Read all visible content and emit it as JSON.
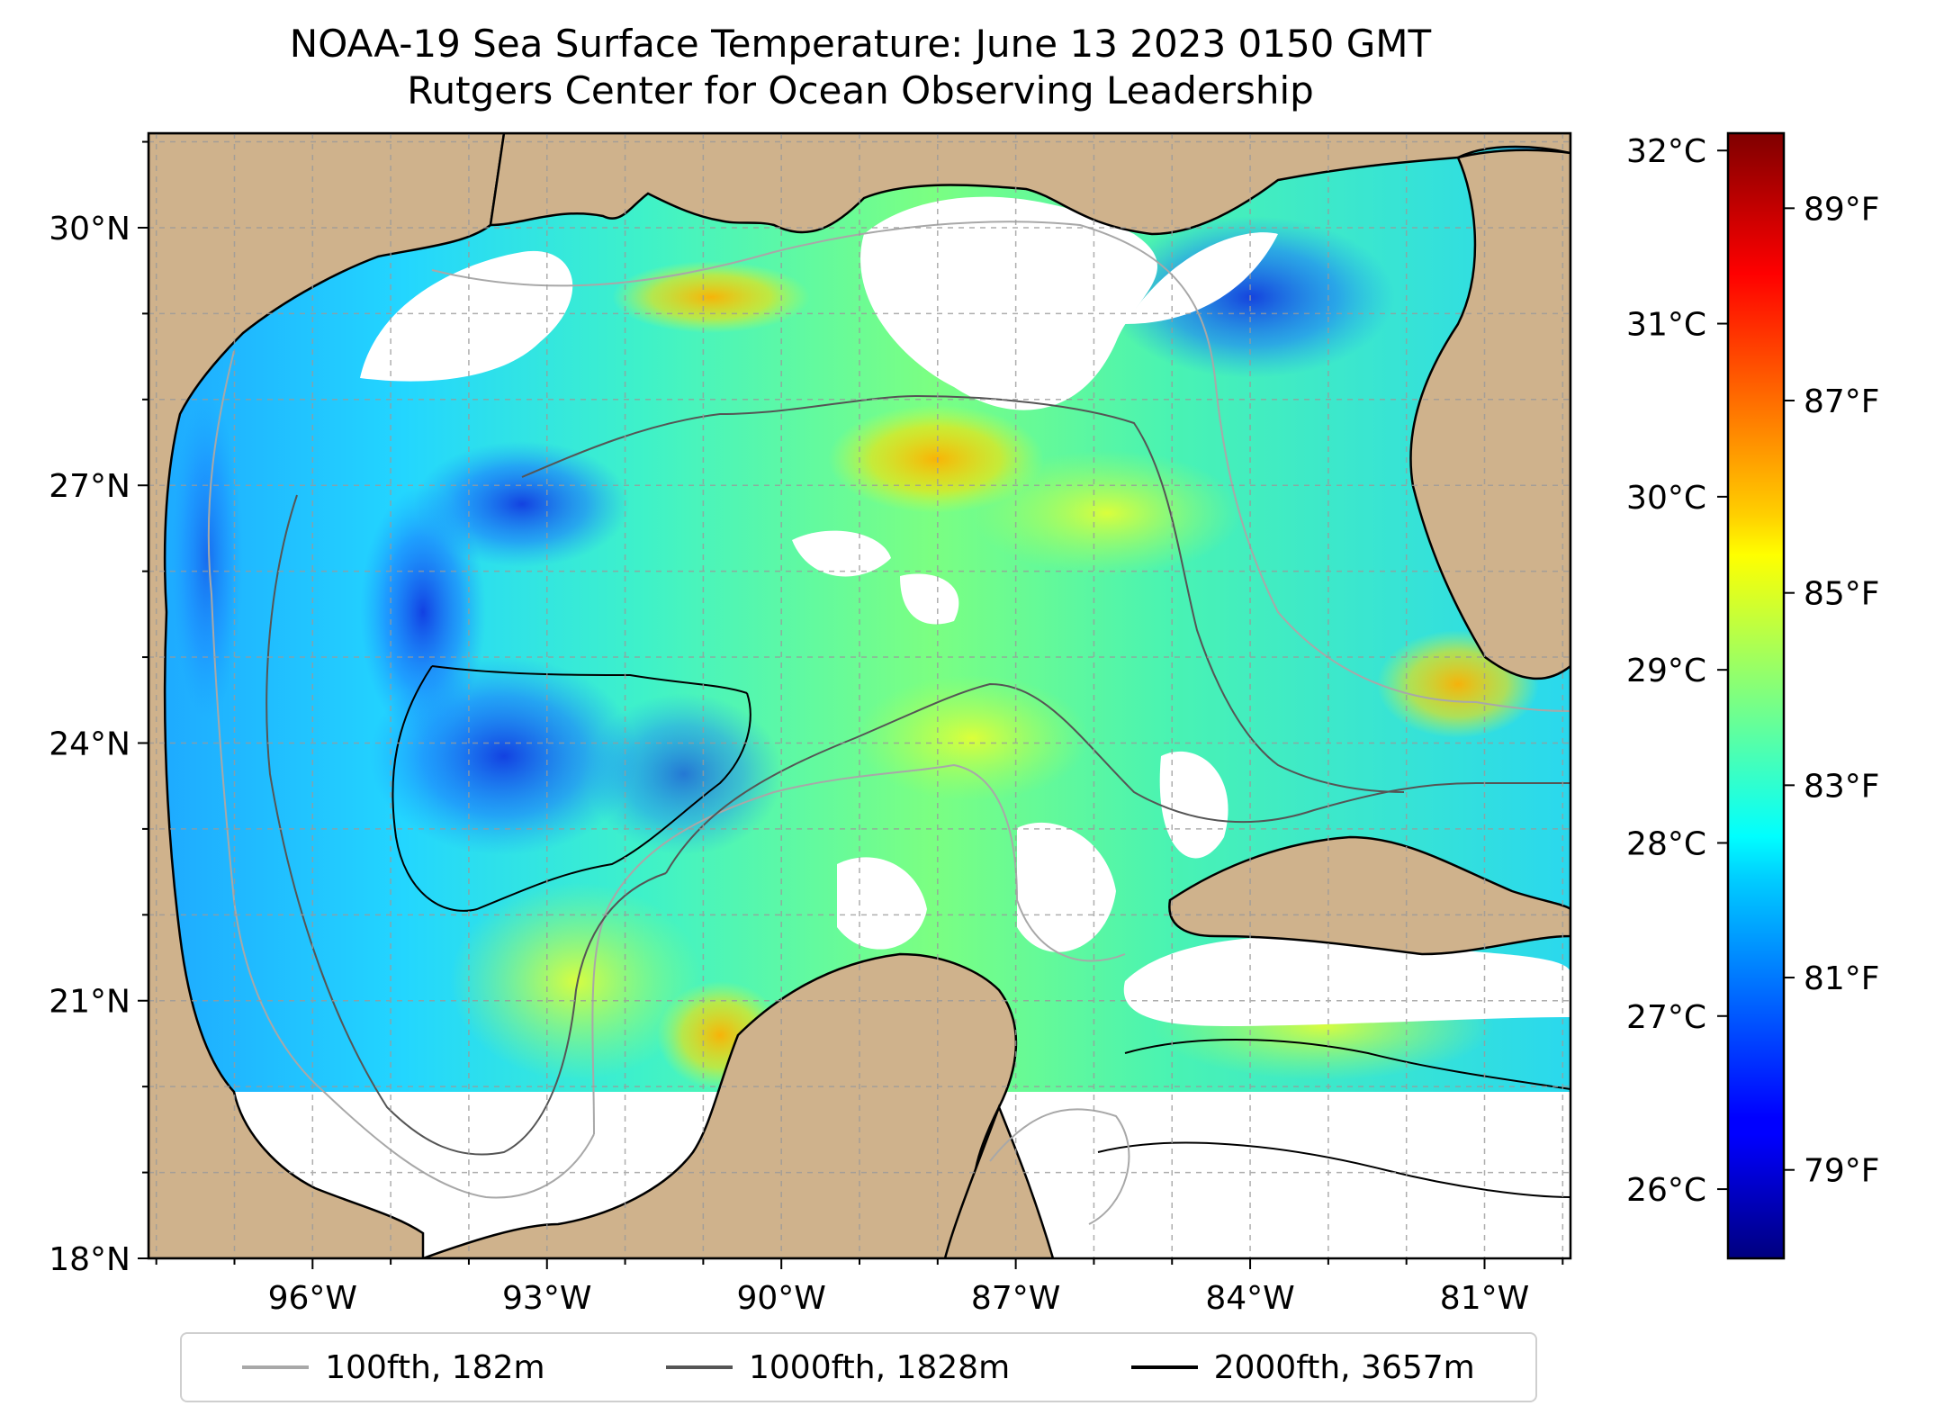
{
  "title": "NOAA-19 Sea Surface Temperature: June 13 2023 0150 GMT",
  "subtitle": "Rutgers Center for Ocean Observing Leadership",
  "map": {
    "lat_range": [
      18,
      31.1
    ],
    "lon_range": [
      -98.1,
      -79.9
    ],
    "lat_ticks": [
      {
        "value": 18,
        "label": "18°N"
      },
      {
        "value": 21,
        "label": "21°N"
      },
      {
        "value": 24,
        "label": "24°N"
      },
      {
        "value": 27,
        "label": "27°N"
      },
      {
        "value": 30,
        "label": "30°N"
      }
    ],
    "lon_ticks": [
      {
        "value": -96,
        "label": "96°W"
      },
      {
        "value": -93,
        "label": "93°W"
      },
      {
        "value": -90,
        "label": "90°W"
      },
      {
        "value": -87,
        "label": "87°W"
      },
      {
        "value": -84,
        "label": "84°W"
      },
      {
        "value": -81,
        "label": "81°W"
      }
    ],
    "grid": true,
    "land_color": "#cfb28c",
    "nodata_color": "#ffffff"
  },
  "colorbar": {
    "colormap": "jet",
    "celsius_range": [
      25.6,
      32.1
    ],
    "celsius_ticks": [
      {
        "value": 26,
        "label": "26°C"
      },
      {
        "value": 27,
        "label": "27°C"
      },
      {
        "value": 28,
        "label": "28°C"
      },
      {
        "value": 29,
        "label": "29°C"
      },
      {
        "value": 30,
        "label": "30°C"
      },
      {
        "value": 31,
        "label": "31°C"
      },
      {
        "value": 32,
        "label": "32°C"
      }
    ],
    "fahrenheit_ticks": [
      {
        "value": 79,
        "label": "79°F"
      },
      {
        "value": 81,
        "label": "81°F"
      },
      {
        "value": 83,
        "label": "83°F"
      },
      {
        "value": 85,
        "label": "85°F"
      },
      {
        "value": 87,
        "label": "87°F"
      },
      {
        "value": 89,
        "label": "89°F"
      }
    ]
  },
  "legend": [
    {
      "label": "100fth, 182m",
      "color": "#a8a8a8"
    },
    {
      "label": "1000fth, 1828m",
      "color": "#555555"
    },
    {
      "label": "2000fth, 3657m",
      "color": "#000000"
    }
  ]
}
